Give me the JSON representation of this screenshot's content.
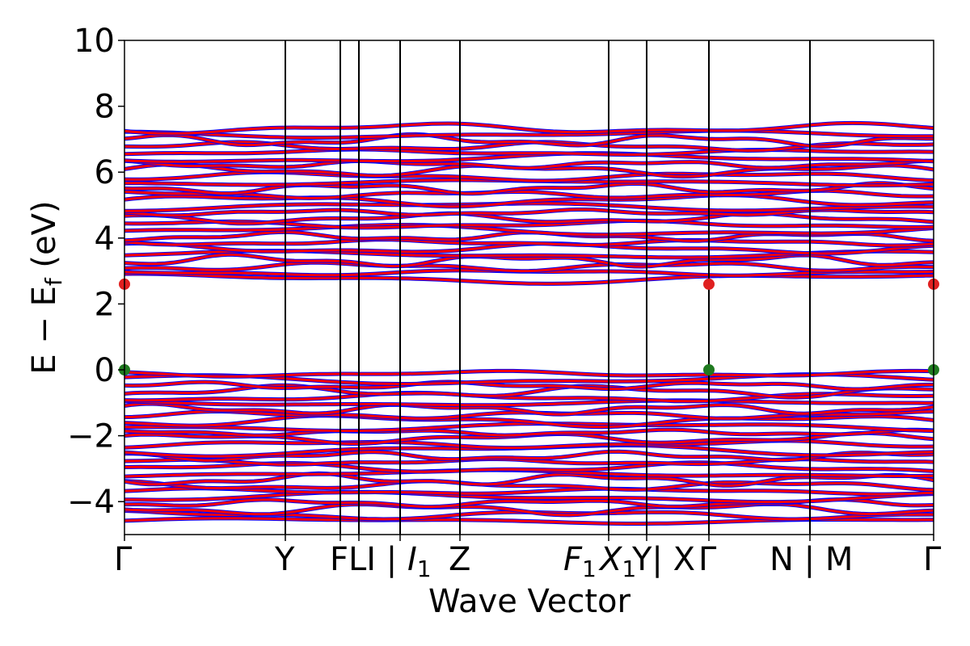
{
  "chart_data": {
    "type": "line",
    "xlabel": "Wave Vector",
    "ylabel": "E − E",
    "ylabel_sub": "f",
    "ylabel_unit": " (eV)",
    "ylim": [
      -5,
      10
    ],
    "yticks": [
      {
        "value": 10,
        "label": "10"
      },
      {
        "value": 8,
        "label": "8"
      },
      {
        "value": 6,
        "label": "6"
      },
      {
        "value": 4,
        "label": "4"
      },
      {
        "value": 2,
        "label": "2"
      },
      {
        "value": 0,
        "label": "0"
      },
      {
        "value": -2,
        "label": "−2"
      },
      {
        "value": -4,
        "label": "−4"
      }
    ],
    "high_symmetry_points": [
      "Γ",
      "Y",
      "F",
      "L",
      "I | I1",
      "Z",
      "F1",
      "X1",
      "Y | X",
      "Γ",
      "N | M",
      "Γ"
    ],
    "xtick_labels": [
      {
        "text": "Γ",
        "italic": false
      },
      {
        "text": "Y",
        "italic": false
      },
      {
        "text": "FLI | ",
        "italic": false
      },
      {
        "text": "I",
        "italic": true,
        "sub": "1"
      },
      {
        "text": "Z",
        "italic": false
      },
      {
        "text": "F",
        "italic": true,
        "sub": "1"
      },
      {
        "text": "X",
        "italic": true,
        "sub": "1"
      },
      {
        "text": "Y| X",
        "italic": false
      },
      {
        "text": "Γ",
        "italic": false
      },
      {
        "text": "N | M",
        "italic": false
      },
      {
        "text": "Γ",
        "italic": false
      }
    ],
    "spin_channel_colors": {
      "spin_up": "#0000ff",
      "spin_down": "#ff0000"
    },
    "valence_band_max_ev": 0.0,
    "conduction_band_min_ev": 2.6,
    "vbm_marker_color": "#1f7a1f",
    "cbm_marker_color": "#e02020",
    "band_regions": [
      {
        "name": "valence",
        "top_ev": 0.0,
        "bottom_ev": -4.7
      },
      {
        "name": "conduction",
        "bottom_ev": 2.65,
        "top_ev": 7.45
      }
    ],
    "grid": false,
    "legend": "none"
  }
}
